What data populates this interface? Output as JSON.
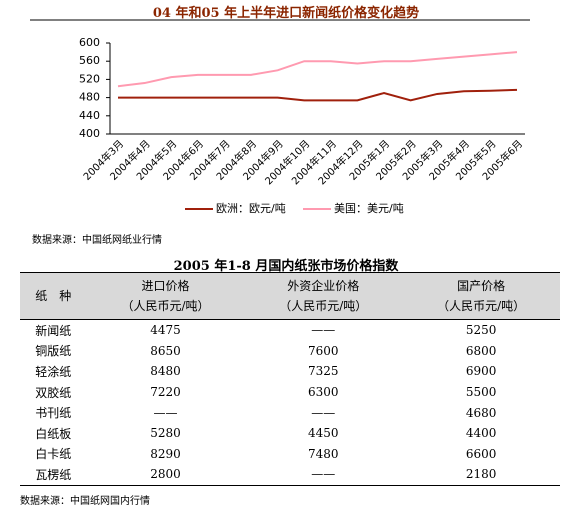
{
  "chart_data": {
    "type": "line",
    "title": "04 年和05 年上半年进口新闻纸价格变化趋势",
    "categories": [
      "2004年3月",
      "2004年4月",
      "2004年5月",
      "2004年6月",
      "2004年7月",
      "2004年8月",
      "2004年9月",
      "2004年10月",
      "2004年11月",
      "2004年12月",
      "2005年1月",
      "2005年2月",
      "2005年3月",
      "2005年4月",
      "2005年5月",
      "2005年6月"
    ],
    "series": [
      {
        "name": "欧洲：欧元/吨",
        "color": "#a0200c",
        "values": [
          480,
          480,
          480,
          480,
          480,
          480,
          480,
          474,
          474,
          474,
          490,
          474,
          488,
          494,
          495,
          497
        ]
      },
      {
        "name": "美国：美元/吨",
        "color": "#ff9ab0",
        "values": [
          505,
          512,
          525,
          530,
          530,
          530,
          540,
          560,
          560,
          555,
          560,
          560,
          565,
          570,
          575,
          580
        ]
      }
    ],
    "ylim": [
      400,
      600
    ],
    "yticks": [
      400,
      440,
      480,
      520,
      560,
      600
    ],
    "legend": "bottom"
  },
  "source1": "数据来源：中国纸网纸业行情",
  "table": {
    "title": "2005 年1-8 月国内纸张市场价格指数",
    "header": [
      [
        "纸　种"
      ],
      [
        "进口价格",
        "（人民币元/吨）"
      ],
      [
        "外资企业价格",
        "（人民币元/吨）"
      ],
      [
        "国产价格",
        "（人民币元/吨）"
      ]
    ],
    "rows": [
      [
        "新闻纸",
        "4475",
        "——",
        "5250"
      ],
      [
        "铜版纸",
        "8650",
        "7600",
        "6800"
      ],
      [
        "轻涂纸",
        "8480",
        "7325",
        "6900"
      ],
      [
        "双胶纸",
        "7220",
        "6300",
        "5500"
      ],
      [
        "书刊纸",
        "——",
        "——",
        "4680"
      ],
      [
        "白纸板",
        "5280",
        "4450",
        "4400"
      ],
      [
        "白卡纸",
        "8290",
        "7480",
        "6600"
      ],
      [
        "瓦楞纸",
        "2800",
        "——",
        "2180"
      ]
    ]
  },
  "source2": "数据来源：中国纸网国内行情"
}
